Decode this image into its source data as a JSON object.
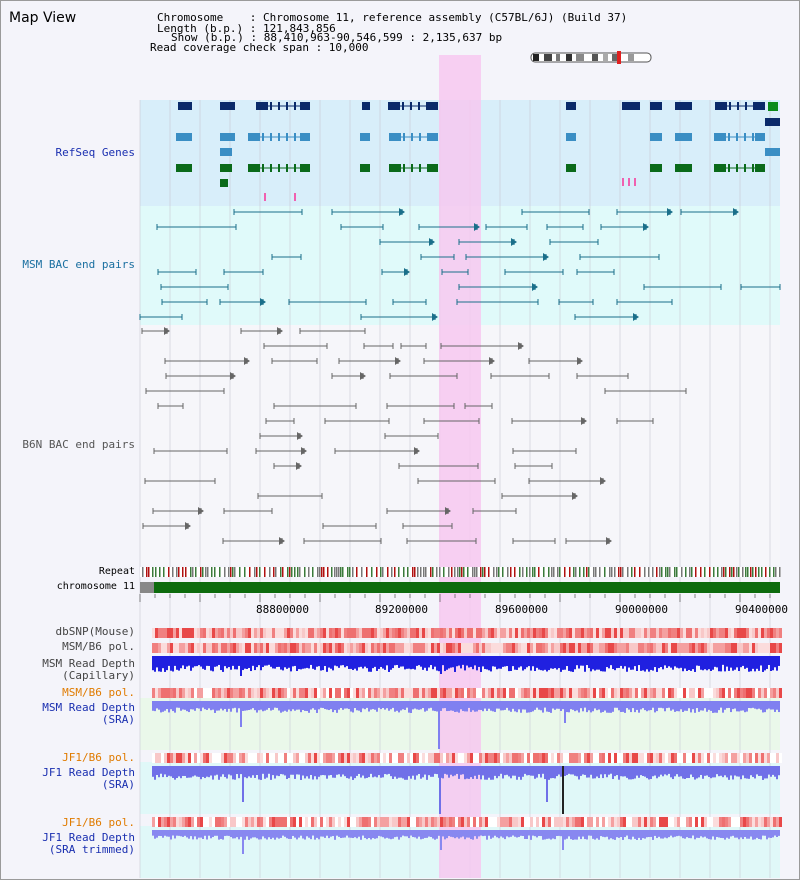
{
  "header": {
    "title": "Map View",
    "lines": [
      "Chromosome    : Chromosome 11, reference assembly (C57BL/6J) (Build 37)",
      "Length (b.p.) : 121,843,856",
      "Show (b.p.) : 88,410,963-90,546,599 : 2,135,637 bp",
      "Read coverage check span : 10,000"
    ]
  },
  "tracks": {
    "refseq": "RefSeq Genes",
    "msm_bac": "MSM BAC end pairs",
    "b6n_bac": "B6N BAC end pairs",
    "repeat": "Repeat",
    "chromosome": "chromosome 11",
    "dbsnp": "dbSNP(Mouse)",
    "msm_b6_pol": "MSM/B6 pol.",
    "msm_read_depth_cap": "MSM Read Depth\n(Capillary)",
    "msm_b6_pol2": "MSM/B6 pol.",
    "msm_read_depth_sra": "MSM Read Depth\n(SRA)",
    "jf1_b6_pol": "JF1/B6 pol.",
    "jf1_read_depth_sra": "JF1 Read Depth\n(SRA)",
    "jf1_b6_pol2": "JF1/B6 pol.",
    "jf1_read_depth_trim": "JF1 Read Depth\n(SRA trimmed)"
  },
  "axis": {
    "ticks": [
      "88800000",
      "89200000",
      "89600000",
      "90000000",
      "90400000"
    ]
  },
  "colors": {
    "refseq_label": "#1a2fb0",
    "msm_label": "#1a6fa0",
    "b6n_label": "#555555",
    "pol_orange": "#e07b00",
    "depth_blue": "#1a2fb0",
    "highlight": "#f7c8f0"
  }
}
